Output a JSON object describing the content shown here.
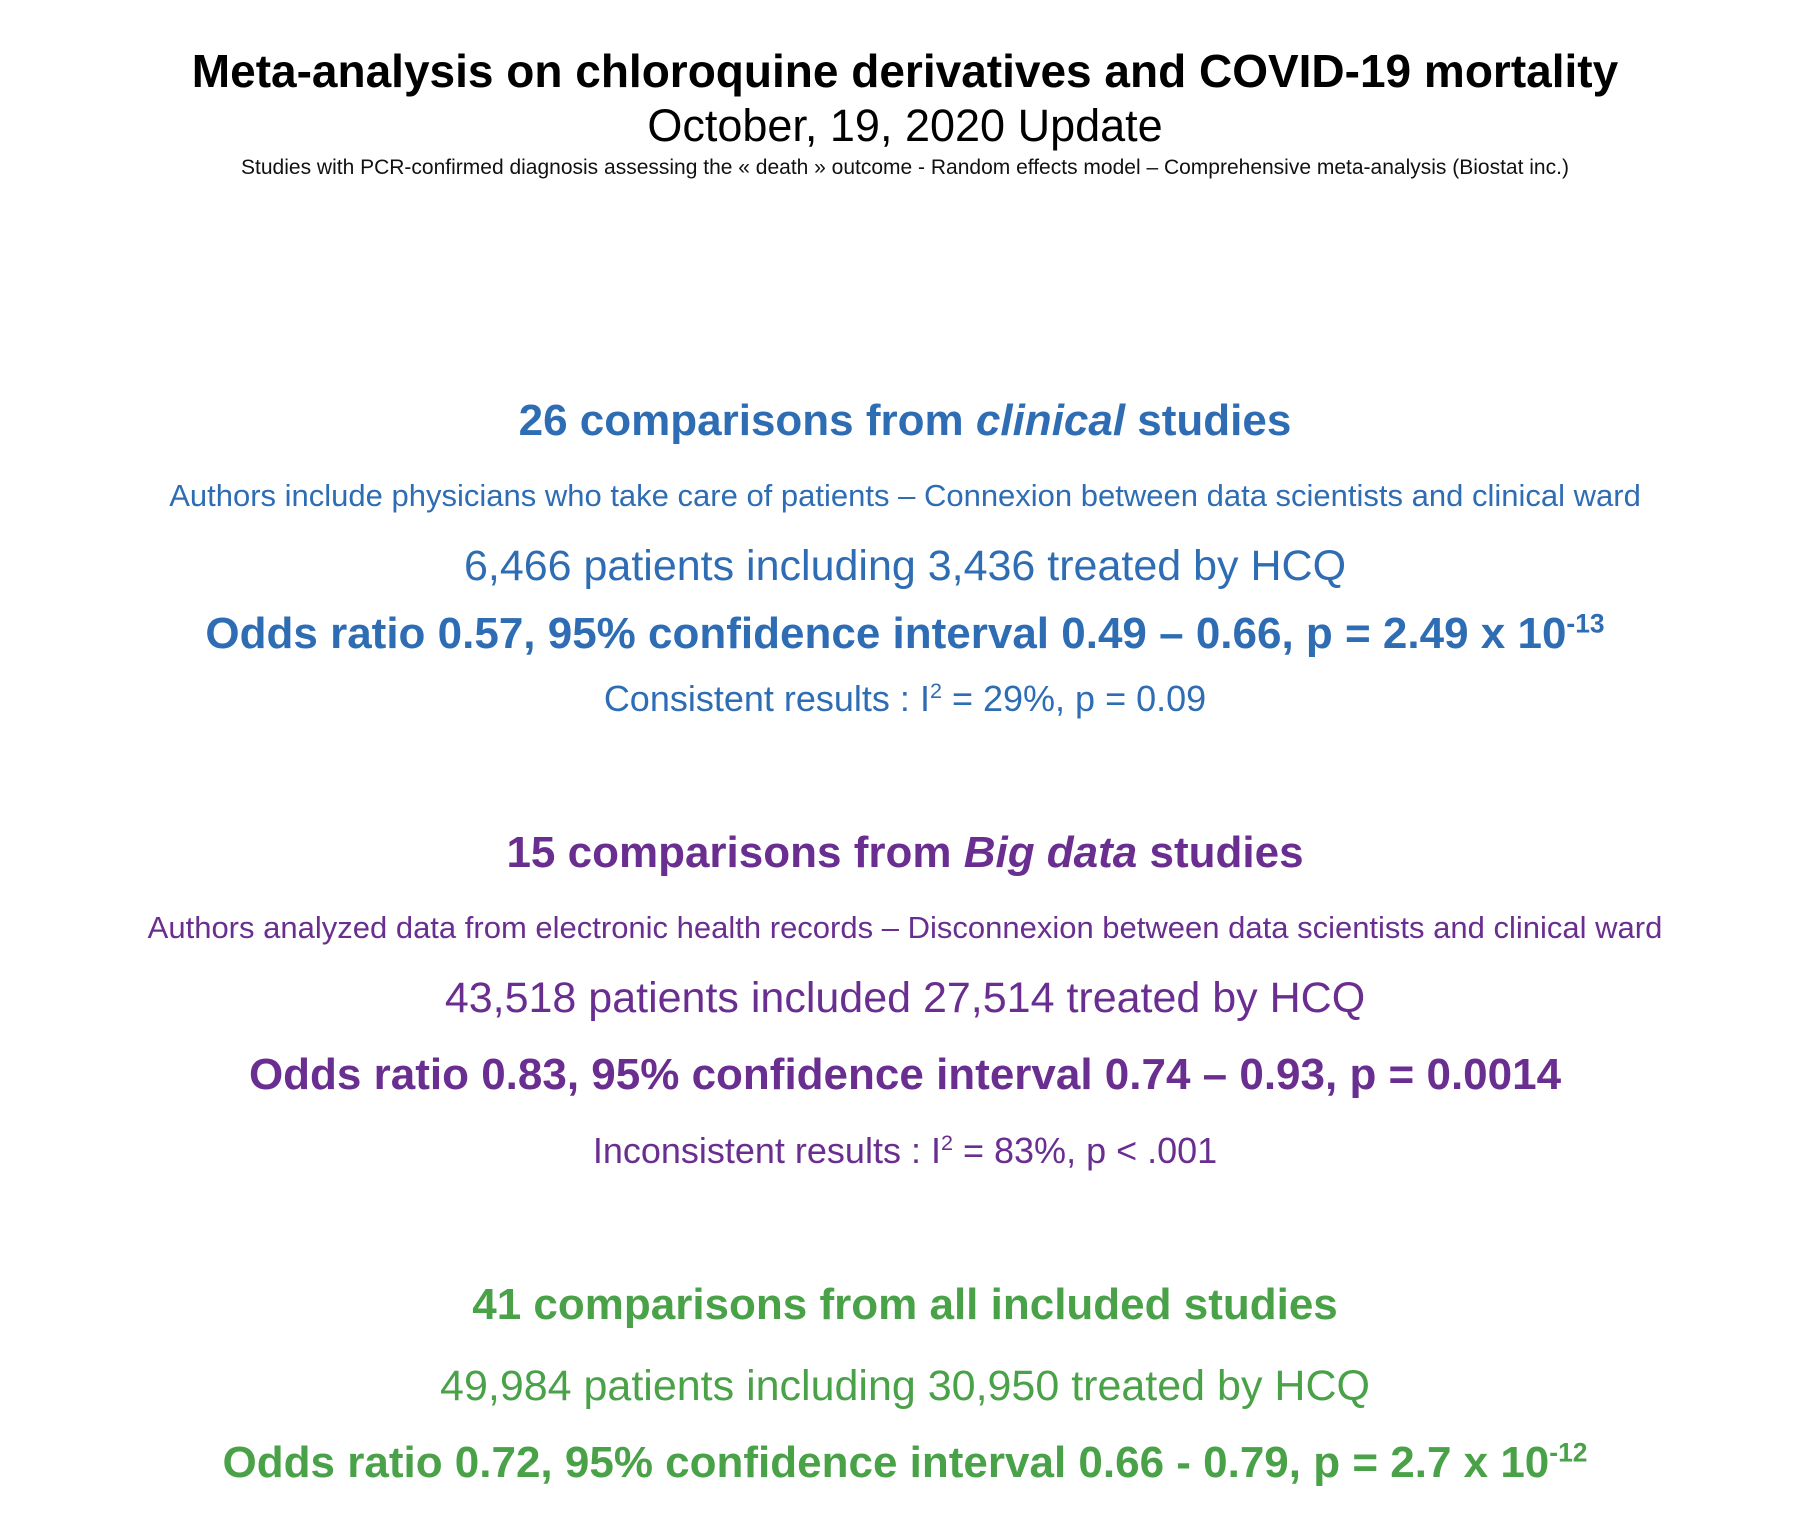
{
  "header": {
    "title": "Meta-analysis on chloroquine derivatives and COVID-19 mortality",
    "update": "October, 19, 2020 Update",
    "method": "Studies with PCR-confirmed diagnosis assessing the « death » outcome - Random effects model – Comprehensive meta-analysis (Biostat inc.)"
  },
  "clinical": {
    "heading_pre": "26 comparisons from ",
    "heading_em": "clinical",
    "heading_post": " studies",
    "subtitle": "Authors include physicians who take care of patients – Connexion between data scientists and clinical ward",
    "patients": "6,466 patients including 3,436 treated by HCQ",
    "odds_text": "Odds ratio 0.57, 95% confidence interval 0.49 – 0.66, p = 2.49 x 10",
    "odds_exp": "-13",
    "consistency_pre": "Consistent results : I",
    "consistency_sup": "2",
    "consistency_post": " = 29%, p = 0.09",
    "color": "#2e6db4"
  },
  "bigdata": {
    "heading_pre": "15 comparisons from ",
    "heading_em": "Big data",
    "heading_post": " studies",
    "subtitle": "Authors analyzed data from electronic health records – Disconnexion between data scientists and clinical ward",
    "patients": "43,518 patients included 27,514 treated by HCQ",
    "odds_text": "Odds ratio 0.83, 95% confidence interval 0.74 – 0.93, p = 0.0014",
    "consistency_pre": "Inconsistent results : I",
    "consistency_sup": "2",
    "consistency_post": " = 83%, p < .001",
    "color": "#6a2e91"
  },
  "all": {
    "heading": "41 comparisons from all included studies",
    "patients": "49,984 patients including 30,950 treated by HCQ",
    "odds_text": "Odds ratio 0.72, 95% confidence interval 0.66 - 0.79, p = 2.7 x 10",
    "odds_exp": "-12",
    "color": "#4aa248"
  }
}
